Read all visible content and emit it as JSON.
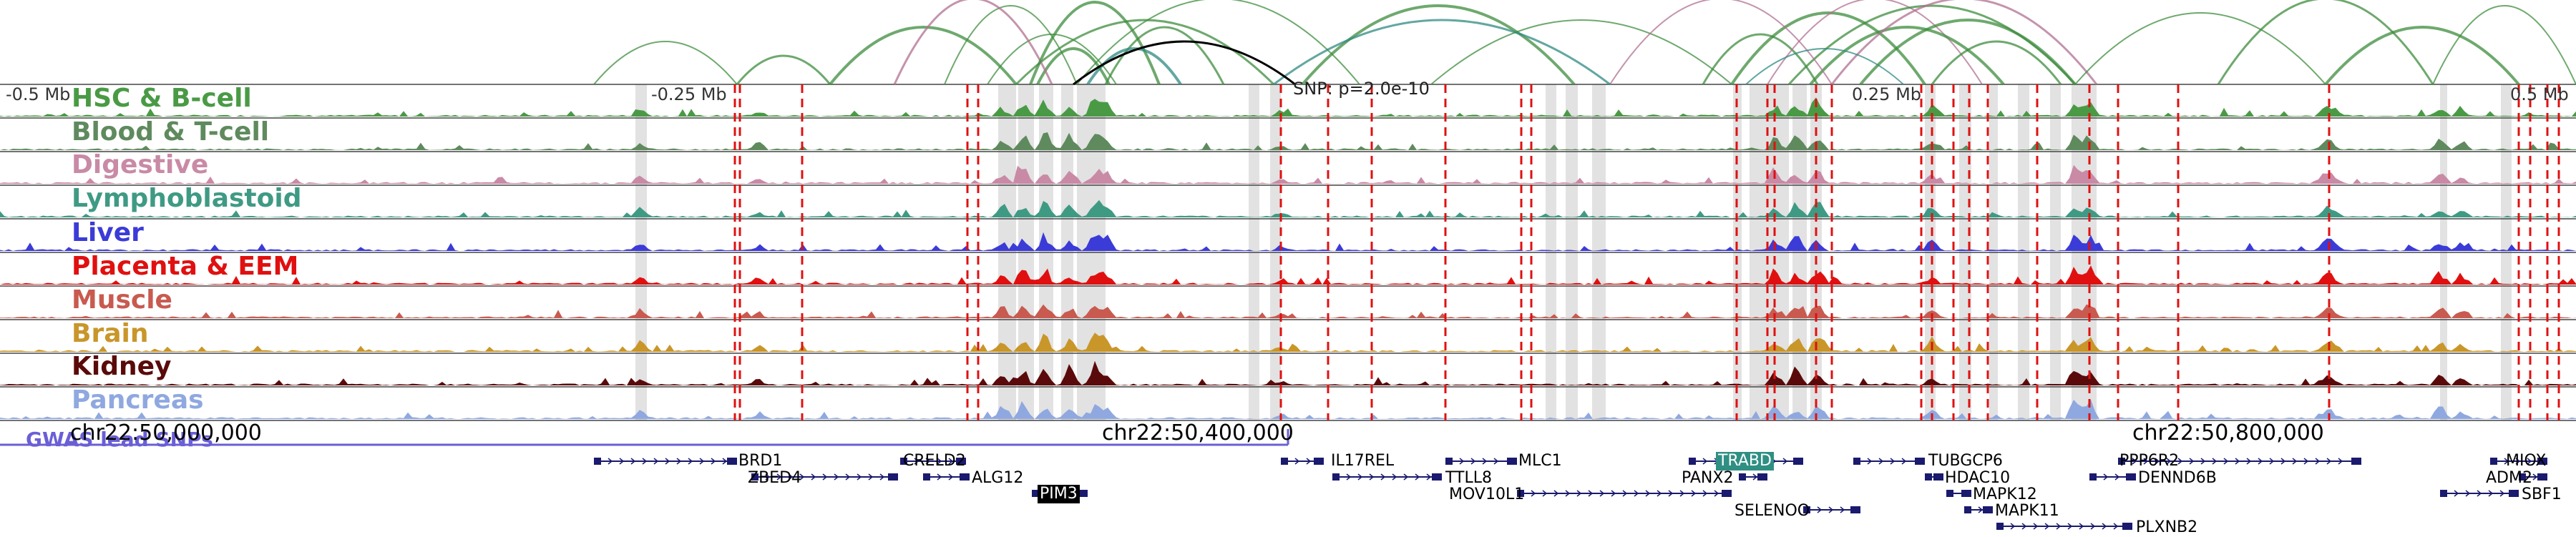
{
  "colors": {
    "hsc": "#4a9a45",
    "blood": "#5f8a5e",
    "digestive": "#c98aa6",
    "lympho": "#3f9a84",
    "liver": "#3b3bd8",
    "placenta": "#e01010",
    "muscle": "#c85a50",
    "brain": "#c9962a",
    "kidney": "#5a0a0a",
    "pancreas": "#8fa8e0",
    "highlight_band": "#e2e2e2",
    "snp_line": "#e01010",
    "gwas": "#6a5fd6",
    "gene": "#1a1a6e",
    "arc_green": "#3d8c3d",
    "arc_pink": "#b07090",
    "arc_teal": "#2f8a82",
    "arc_black": "#000000"
  },
  "tracks": [
    {
      "key": "hsc",
      "label": "HSC & B-cell"
    },
    {
      "key": "blood",
      "label": "Blood & T-cell"
    },
    {
      "key": "digestive",
      "label": "Digestive"
    },
    {
      "key": "lympho",
      "label": "Lymphoblastoid"
    },
    {
      "key": "liver",
      "label": "Liver"
    },
    {
      "key": "placenta",
      "label": "Placenta & EEM"
    },
    {
      "key": "muscle",
      "label": "Muscle"
    },
    {
      "key": "brain",
      "label": "Brain"
    },
    {
      "key": "kidney",
      "label": "Kidney"
    },
    {
      "key": "pancreas",
      "label": "Pancreas"
    }
  ],
  "scale": {
    "left": "-0.5 Mb",
    "mid_left": "-0.25 Mb",
    "mid_right": "0.25 Mb",
    "right": "0.5 Mb"
  },
  "snp_label": "SNP: p=2.0e-10",
  "gwas_label": "GWAS lead SNPs",
  "coordinates": [
    "chr22:50,000,000",
    "chr22:50,400,000",
    "chr22:50,800,000"
  ],
  "genes": [
    {
      "name": "BRD1",
      "style": ""
    },
    {
      "name": "ZBED4",
      "style": ""
    },
    {
      "name": "CRELD2",
      "style": ""
    },
    {
      "name": "ALG12",
      "style": ""
    },
    {
      "name": "PIM3",
      "style": "dark"
    },
    {
      "name": "IL17REL",
      "style": ""
    },
    {
      "name": "TTLL8",
      "style": ""
    },
    {
      "name": "MLC1",
      "style": ""
    },
    {
      "name": "MOV10L1",
      "style": ""
    },
    {
      "name": "TRABD",
      "style": "hl"
    },
    {
      "name": "PANX2",
      "style": ""
    },
    {
      "name": "SELENOO",
      "style": ""
    },
    {
      "name": "TUBGCP6",
      "style": ""
    },
    {
      "name": "HDAC10",
      "style": ""
    },
    {
      "name": "MAPK12",
      "style": ""
    },
    {
      "name": "MAPK11",
      "style": ""
    },
    {
      "name": "PLXNB2",
      "style": ""
    },
    {
      "name": "PPP6R2",
      "style": ""
    },
    {
      "name": "DENND6B",
      "style": ""
    },
    {
      "name": "MIOX",
      "style": ""
    },
    {
      "name": "ADM2",
      "style": ""
    },
    {
      "name": "SBF1",
      "style": ""
    }
  ]
}
